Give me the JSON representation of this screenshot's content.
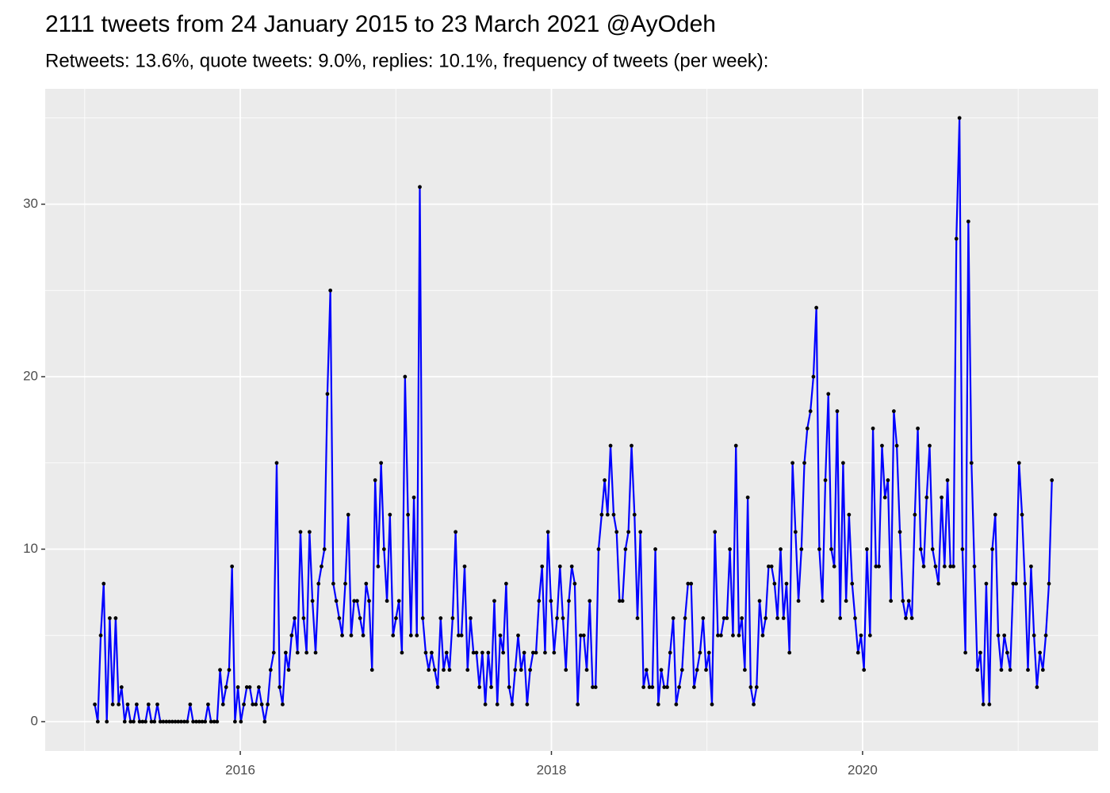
{
  "chart_data": {
    "type": "line",
    "title": "2111 tweets from 24 January 2015 to 23 March 2021 @AyOdeh",
    "subtitle": "Retweets: 13.6%, quote tweets: 9.0%, replies: 10.1%, frequency of tweets (per week):",
    "color": "#0000ff",
    "point_color": "#000000",
    "grid": true,
    "xlim": [
      2014.746,
      2021.514
    ],
    "xticks": [
      2016,
      2018,
      2020
    ],
    "x_minor_grid": [
      2015,
      2017,
      2019,
      2021
    ],
    "ylim": [
      -1.7,
      36.69
    ],
    "yticks": [
      0,
      10,
      20,
      30
    ],
    "y_minor_grid": [
      5,
      15,
      25,
      35
    ],
    "x": [
      2015.065,
      2015.084,
      2015.103,
      2015.122,
      2015.142,
      2015.161,
      2015.18,
      2015.199,
      2015.218,
      2015.237,
      2015.257,
      2015.276,
      2015.295,
      2015.314,
      2015.334,
      2015.353,
      2015.372,
      2015.391,
      2015.41,
      2015.429,
      2015.448,
      2015.467,
      2015.486,
      2015.505,
      2015.525,
      2015.544,
      2015.563,
      2015.582,
      2015.601,
      2015.62,
      2015.64,
      2015.659,
      2015.678,
      2015.697,
      2015.717,
      2015.736,
      2015.755,
      2015.774,
      2015.793,
      2015.812,
      2015.832,
      2015.851,
      2015.87,
      2015.889,
      2015.909,
      2015.928,
      2015.947,
      2015.966,
      2015.985,
      2016.004,
      2016.023,
      2016.042,
      2016.061,
      2016.08,
      2016.1,
      2016.119,
      2016.138,
      2016.157,
      2016.176,
      2016.195,
      2016.215,
      2016.234,
      2016.253,
      2016.272,
      2016.292,
      2016.311,
      2016.33,
      2016.349,
      2016.368,
      2016.387,
      2016.407,
      2016.426,
      2016.445,
      2016.464,
      2016.484,
      2016.503,
      2016.522,
      2016.541,
      2016.56,
      2016.579,
      2016.598,
      2016.617,
      2016.636,
      2016.655,
      2016.675,
      2016.694,
      2016.713,
      2016.732,
      2016.751,
      2016.77,
      2016.79,
      2016.809,
      2016.828,
      2016.847,
      2016.867,
      2016.886,
      2016.905,
      2016.924,
      2016.943,
      2016.962,
      2016.982,
      2017.001,
      2017.02,
      2017.039,
      2017.059,
      2017.078,
      2017.097,
      2017.116,
      2017.135,
      2017.154,
      2017.173,
      2017.192,
      2017.211,
      2017.23,
      2017.25,
      2017.269,
      2017.288,
      2017.307,
      2017.326,
      2017.345,
      2017.365,
      2017.384,
      2017.403,
      2017.422,
      2017.442,
      2017.461,
      2017.48,
      2017.499,
      2017.518,
      2017.537,
      2017.556,
      2017.575,
      2017.594,
      2017.613,
      2017.633,
      2017.652,
      2017.671,
      2017.69,
      2017.709,
      2017.728,
      2017.748,
      2017.767,
      2017.786,
      2017.805,
      2017.825,
      2017.844,
      2017.863,
      2017.882,
      2017.901,
      2017.92,
      2017.94,
      2017.959,
      2017.978,
      2017.997,
      2018.017,
      2018.036,
      2018.055,
      2018.074,
      2018.093,
      2018.112,
      2018.131,
      2018.15,
      2018.169,
      2018.188,
      2018.208,
      2018.227,
      2018.246,
      2018.265,
      2018.284,
      2018.303,
      2018.323,
      2018.342,
      2018.361,
      2018.38,
      2018.4,
      2018.419,
      2018.438,
      2018.457,
      2018.476,
      2018.495,
      2018.515,
      2018.534,
      2018.553,
      2018.572,
      2018.592,
      2018.611,
      2018.63,
      2018.649,
      2018.668,
      2018.687,
      2018.706,
      2018.725,
      2018.744,
      2018.763,
      2018.783,
      2018.802,
      2018.821,
      2018.84,
      2018.859,
      2018.878,
      2018.898,
      2018.917,
      2018.936,
      2018.955,
      2018.975,
      2018.994,
      2019.013,
      2019.032,
      2019.051,
      2019.07,
      2019.09,
      2019.109,
      2019.128,
      2019.147,
      2019.167,
      2019.186,
      2019.205,
      2019.224,
      2019.243,
      2019.262,
      2019.281,
      2019.3,
      2019.319,
      2019.338,
      2019.358,
      2019.377,
      2019.396,
      2019.415,
      2019.434,
      2019.453,
      2019.473,
      2019.492,
      2019.511,
      2019.53,
      2019.55,
      2019.569,
      2019.588,
      2019.607,
      2019.626,
      2019.645,
      2019.665,
      2019.684,
      2019.703,
      2019.722,
      2019.742,
      2019.761,
      2019.78,
      2019.799,
      2019.818,
      2019.837,
      2019.856,
      2019.875,
      2019.894,
      2019.913,
      2019.933,
      2019.952,
      2019.971,
      2019.99,
      2020.009,
      2020.028,
      2020.048,
      2020.067,
      2020.086,
      2020.105,
      2020.125,
      2020.144,
      2020.163,
      2020.182,
      2020.201,
      2020.22,
      2020.24,
      2020.259,
      2020.278,
      2020.297,
      2020.317,
      2020.336,
      2020.355,
      2020.374,
      2020.393,
      2020.412,
      2020.431,
      2020.45,
      2020.469,
      2020.488,
      2020.508,
      2020.527,
      2020.546,
      2020.565,
      2020.584,
      2020.603,
      2020.623,
      2020.642,
      2020.661,
      2020.68,
      2020.7,
      2020.719,
      2020.738,
      2020.757,
      2020.776,
      2020.795,
      2020.815,
      2020.834,
      2020.853,
      2020.872,
      2020.892,
      2020.911,
      2020.93,
      2020.949,
      2020.968,
      2020.987,
      2021.006,
      2021.025,
      2021.044,
      2021.063,
      2021.083,
      2021.102,
      2021.121,
      2021.14,
      2021.159,
      2021.178,
      2021.198,
      2021.217
    ],
    "values": [
      1,
      0,
      5,
      8,
      0,
      6,
      1,
      6,
      1,
      2,
      0,
      1,
      0,
      0,
      1,
      0,
      0,
      0,
      1,
      0,
      0,
      1,
      0,
      0,
      0,
      0,
      0,
      0,
      0,
      0,
      0,
      0,
      1,
      0,
      0,
      0,
      0,
      0,
      1,
      0,
      0,
      0,
      3,
      1,
      2,
      3,
      9,
      0,
      2,
      0,
      1,
      2,
      2,
      1,
      1,
      2,
      1,
      0,
      1,
      3,
      4,
      15,
      2,
      1,
      4,
      3,
      5,
      6,
      4,
      11,
      6,
      4,
      11,
      7,
      4,
      8,
      9,
      10,
      19,
      25,
      8,
      7,
      6,
      5,
      8,
      12,
      5,
      7,
      7,
      6,
      5,
      8,
      7,
      3,
      14,
      9,
      15,
      10,
      7,
      12,
      5,
      6,
      7,
      4,
      20,
      12,
      5,
      13,
      5,
      31,
      6,
      4,
      3,
      4,
      3,
      2,
      6,
      3,
      4,
      3,
      6,
      11,
      5,
      5,
      9,
      3,
      6,
      4,
      4,
      2,
      4,
      1,
      4,
      2,
      7,
      1,
      5,
      4,
      8,
      2,
      1,
      3,
      5,
      3,
      4,
      1,
      3,
      4,
      4,
      7,
      9,
      4,
      11,
      7,
      4,
      6,
      9,
      6,
      3,
      7,
      9,
      8,
      1,
      5,
      5,
      3,
      7,
      2,
      2,
      10,
      12,
      14,
      12,
      16,
      12,
      11,
      7,
      7,
      10,
      11,
      16,
      12,
      6,
      11,
      2,
      3,
      2,
      2,
      10,
      1,
      3,
      2,
      2,
      4,
      6,
      1,
      2,
      3,
      6,
      8,
      8,
      2,
      3,
      4,
      6,
      3,
      4,
      1,
      11,
      5,
      5,
      6,
      6,
      10,
      5,
      16,
      5,
      6,
      3,
      13,
      2,
      1,
      2,
      7,
      5,
      6,
      9,
      9,
      8,
      6,
      10,
      6,
      8,
      4,
      15,
      11,
      7,
      10,
      15,
      17,
      18,
      20,
      24,
      10,
      7,
      14,
      19,
      10,
      9,
      18,
      6,
      15,
      7,
      12,
      8,
      6,
      4,
      5,
      3,
      10,
      5,
      17,
      9,
      9,
      16,
      13,
      14,
      7,
      18,
      16,
      11,
      7,
      6,
      7,
      6,
      12,
      17,
      10,
      9,
      13,
      16,
      10,
      9,
      8,
      13,
      9,
      14,
      9,
      9,
      28,
      35,
      10,
      4,
      29,
      15,
      9,
      3,
      4,
      1,
      8,
      1,
      10,
      12,
      5,
      3,
      5,
      4,
      3,
      8,
      8,
      15,
      12,
      8,
      3,
      9,
      5,
      2,
      4,
      3,
      5,
      8,
      14
    ]
  }
}
